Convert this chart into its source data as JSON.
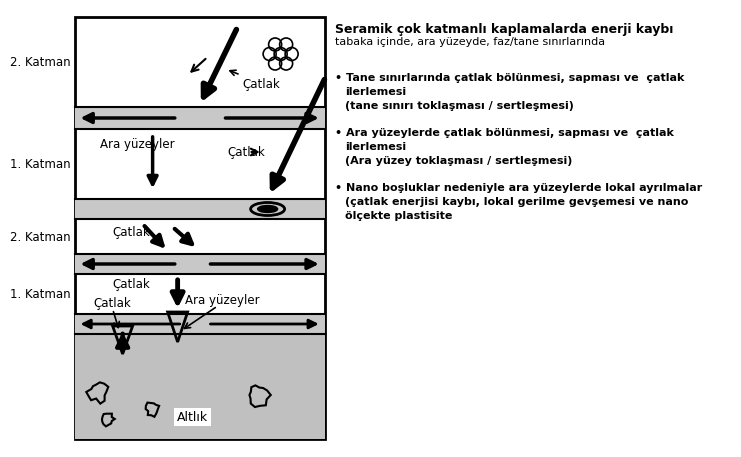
{
  "title": "Seramik çok katmanlı kaplamalarda enerji kaybı",
  "subtitle": "tabaka içinde, ara yüzeyde, faz/tane sınırlarında",
  "bullet1_line1": "Tane sınırlarında çatlak bölünmesi, sapması ve  çatlak",
  "bullet1_line2": "ilerlemesi",
  "bullet1_line3": "(tane sınırı toklaşması / sertleşmesi)",
  "bullet2_line1": "Ara yüzeylerde çatlak bölünmesi, sapması ve  çatlak",
  "bullet2_line2": "ilerlemesi",
  "bullet2_line3": "(Ara yüzey toklaşması / sertleşmesi)",
  "bullet3_line1": "Nano boşluklar nedeniyle ara yüzeylerde lokal ayrılmalar",
  "bullet3_line2": "(çatlak enerjisi kaybı, lokal gerilme gevşemesi ve nano",
  "bullet3_line3": "ölçekte plastisite",
  "label_2katman_top": "2. Katman",
  "label_1katman_1": "1. Katman",
  "label_2katman_mid": "2. Katman",
  "label_1katman_2": "1. Katman",
  "label_catlak_top": "Çatlak",
  "label_ara_yuzeyler_1": "Ara yüzeyler",
  "label_catlak_1": "Çatlak",
  "label_catlak_2": "Çatlak",
  "label_catlak_3": "Çatlak",
  "label_ara_yuzeyler_2": "Ara yüzeyler",
  "label_altlik": "Altlık",
  "bg_color": "#ffffff",
  "gray_band": "#c8c8c8",
  "substrate_gray": "#c0c0c0"
}
